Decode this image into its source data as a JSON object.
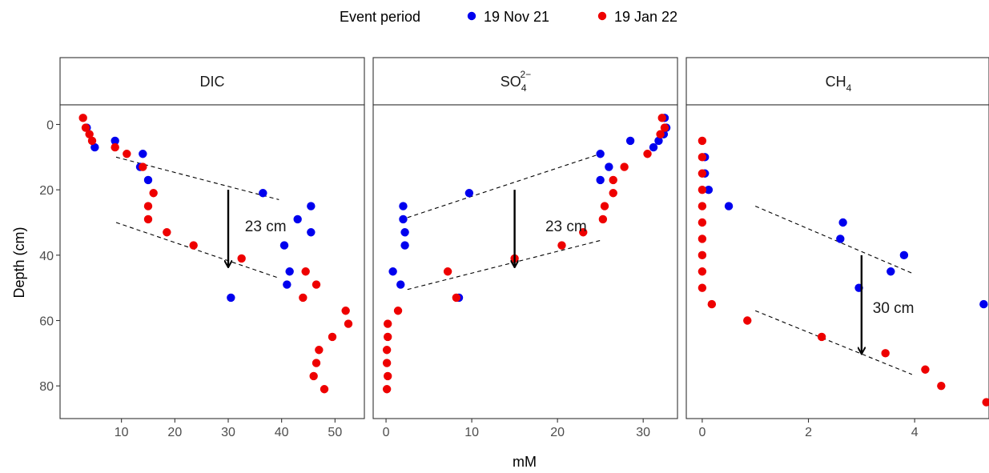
{
  "chart_data": {
    "type": "scatter",
    "xlabel": "mM",
    "ylabel": "Depth (cm)",
    "y_reversed": true,
    "ylim": [
      90,
      -6
    ],
    "grid": false,
    "legend": {
      "title": "Event period",
      "position": "top",
      "entries": [
        {
          "label": "19 Nov 21",
          "color": "#0000ee"
        },
        {
          "label": "19 Jan 22",
          "color": "#ee0000"
        }
      ]
    },
    "y_ticks": [
      0,
      20,
      40,
      60,
      80
    ],
    "panels": [
      {
        "title": "DIC",
        "title_main": "DIC",
        "title_sub": "",
        "title_sup": "",
        "xlim": [
          -1.5,
          55.5
        ],
        "x_ticks": [
          10,
          20,
          30,
          40,
          50
        ],
        "series": [
          {
            "name": "19 Nov 21",
            "color": "#0000ee",
            "points": [
              [
                3.5,
                1
              ],
              [
                5,
                7
              ],
              [
                8.8,
                5
              ],
              [
                14,
                9
              ],
              [
                13.5,
                13
              ],
              [
                15,
                17
              ],
              [
                36.5,
                21
              ],
              [
                45.5,
                25
              ],
              [
                43,
                29
              ],
              [
                45.5,
                33
              ],
              [
                40.5,
                37
              ],
              [
                41.5,
                45
              ],
              [
                41,
                49
              ],
              [
                30.5,
                53
              ]
            ]
          },
          {
            "name": "19 Jan 22",
            "color": "#ee0000",
            "points": [
              [
                2.8,
                -2
              ],
              [
                3.3,
                1
              ],
              [
                4,
                3
              ],
              [
                4.5,
                5
              ],
              [
                8.8,
                7
              ],
              [
                11,
                9
              ],
              [
                14,
                13
              ],
              [
                16,
                21
              ],
              [
                15,
                25
              ],
              [
                15,
                29
              ],
              [
                18.5,
                33
              ],
              [
                23.5,
                37
              ],
              [
                32.5,
                41
              ],
              [
                44.5,
                45
              ],
              [
                46.5,
                49
              ],
              [
                44,
                53
              ],
              [
                52,
                57
              ],
              [
                52.5,
                61
              ],
              [
                49.5,
                65
              ],
              [
                47,
                69
              ],
              [
                46.5,
                73
              ],
              [
                46,
                77
              ],
              [
                48,
                81
              ]
            ]
          }
        ],
        "trend_lines": [
          [
            [
              9,
              10
            ],
            [
              39.5,
              23
            ]
          ],
          [
            [
              9,
              30
            ],
            [
              39.5,
              47
            ]
          ]
        ],
        "arrow": {
          "x": 30,
          "y_from": 20,
          "y_to": 43.5
        },
        "annotation": {
          "text": "23 cm",
          "x": 37,
          "y": 31
        }
      },
      {
        "title": "SO4 2-",
        "title_main": "SO",
        "title_sub": "4",
        "title_sup": "2−",
        "xlim": [
          -1.5,
          34
        ],
        "x_ticks": [
          0,
          10,
          20,
          30
        ],
        "series": [
          {
            "name": "19 Nov 21",
            "color": "#0000ee",
            "points": [
              [
                32.5,
                -2
              ],
              [
                32.7,
                1
              ],
              [
                32.4,
                3
              ],
              [
                31.8,
                5
              ],
              [
                31.2,
                7
              ],
              [
                28.5,
                5
              ],
              [
                25,
                9
              ],
              [
                26,
                13
              ],
              [
                25,
                17
              ],
              [
                9.7,
                21
              ],
              [
                2,
                25
              ],
              [
                2,
                29
              ],
              [
                2.2,
                33
              ],
              [
                2.2,
                37
              ],
              [
                0.8,
                45
              ],
              [
                1.7,
                49
              ],
              [
                8.5,
                53
              ]
            ]
          },
          {
            "name": "19 Jan 22",
            "color": "#ee0000",
            "points": [
              [
                32.2,
                -2
              ],
              [
                32.5,
                1
              ],
              [
                32,
                3
              ],
              [
                30.5,
                9
              ],
              [
                27.8,
                13
              ],
              [
                26.5,
                17
              ],
              [
                26.5,
                21
              ],
              [
                25.5,
                25
              ],
              [
                25.3,
                29
              ],
              [
                23,
                33
              ],
              [
                20.5,
                37
              ],
              [
                15,
                41
              ],
              [
                7.2,
                45
              ],
              [
                8.2,
                53
              ],
              [
                1.4,
                57
              ],
              [
                0.2,
                61
              ],
              [
                0.2,
                65
              ],
              [
                0.1,
                69
              ],
              [
                0.1,
                73
              ],
              [
                0.2,
                77
              ],
              [
                0.1,
                81
              ]
            ]
          }
        ],
        "trend_lines": [
          [
            [
              2.5,
              28.5
            ],
            [
              25,
              9
            ]
          ],
          [
            [
              2.5,
              50.5
            ],
            [
              25,
              35.5
            ]
          ]
        ],
        "arrow": {
          "x": 15,
          "y_from": 20,
          "y_to": 43.5
        },
        "annotation": {
          "text": "23 cm",
          "x": 21,
          "y": 31
        }
      },
      {
        "title": "CH4",
        "title_main": "CH",
        "title_sub": "4",
        "title_sup": "",
        "xlim": [
          -0.3,
          5.4
        ],
        "x_ticks": [
          0,
          2,
          4
        ],
        "series": [
          {
            "name": "19 Nov 21",
            "color": "#0000ee",
            "points": [
              [
                0.05,
                10
              ],
              [
                0.05,
                15
              ],
              [
                0.12,
                20
              ],
              [
                0.5,
                25
              ],
              [
                2.65,
                30
              ],
              [
                2.6,
                35
              ],
              [
                3.8,
                40
              ],
              [
                3.55,
                45
              ],
              [
                2.95,
                50
              ],
              [
                5.3,
                55
              ]
            ]
          },
          {
            "name": "19 Jan 22",
            "color": "#ee0000",
            "points": [
              [
                0,
                5
              ],
              [
                0,
                10
              ],
              [
                0,
                15
              ],
              [
                0,
                20
              ],
              [
                0,
                25
              ],
              [
                0,
                30
              ],
              [
                0,
                35
              ],
              [
                0,
                40
              ],
              [
                0,
                45
              ],
              [
                0,
                50
              ],
              [
                0.18,
                55
              ],
              [
                0.85,
                60
              ],
              [
                2.25,
                65
              ],
              [
                3.45,
                70
              ],
              [
                4.2,
                75
              ],
              [
                4.5,
                80
              ],
              [
                5.35,
                85
              ]
            ]
          }
        ],
        "trend_lines": [
          [
            [
              1,
              25
            ],
            [
              3.95,
              45.5
            ]
          ],
          [
            [
              1,
              57
            ],
            [
              3.95,
              76.5
            ]
          ]
        ],
        "arrow": {
          "x": 3,
          "y_from": 40,
          "y_to": 70
        },
        "annotation": {
          "text": "30 cm",
          "x": 3.6,
          "y": 56
        }
      }
    ]
  }
}
